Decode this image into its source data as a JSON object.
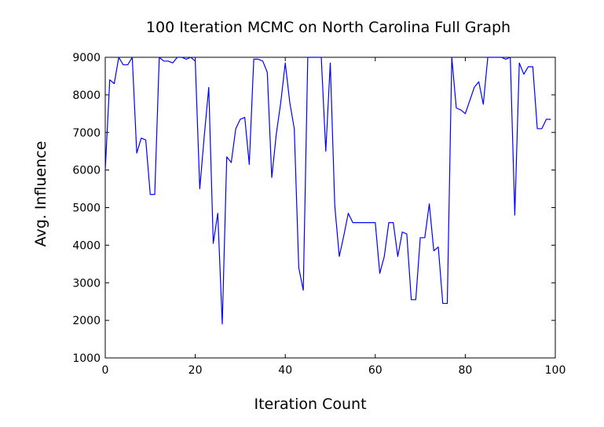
{
  "chart_data": {
    "type": "line",
    "title": "100 Iteration MCMC on North Carolina Full Graph",
    "xlabel": "Iteration Count",
    "ylabel": "Avg. Influence",
    "xlim": [
      0,
      100
    ],
    "ylim": [
      1000,
      9000
    ],
    "x_ticks": [
      0,
      20,
      40,
      60,
      80,
      100
    ],
    "y_ticks": [
      1000,
      2000,
      3000,
      4000,
      5000,
      6000,
      7000,
      8000,
      9000
    ],
    "grid": false,
    "legend": "none",
    "line_color": "#0000ff",
    "x": [
      0,
      1,
      2,
      3,
      4,
      5,
      6,
      7,
      8,
      9,
      10,
      11,
      12,
      13,
      14,
      15,
      16,
      17,
      18,
      19,
      20,
      21,
      22,
      23,
      24,
      25,
      26,
      27,
      28,
      29,
      30,
      31,
      32,
      33,
      34,
      35,
      36,
      37,
      38,
      39,
      40,
      41,
      42,
      43,
      44,
      45,
      46,
      47,
      48,
      49,
      50,
      51,
      52,
      53,
      54,
      55,
      56,
      57,
      58,
      59,
      60,
      61,
      62,
      63,
      64,
      65,
      66,
      67,
      68,
      69,
      70,
      71,
      72,
      73,
      74,
      75,
      76,
      77,
      78,
      79,
      80,
      81,
      82,
      83,
      84,
      85,
      86,
      87,
      88,
      89,
      90,
      91,
      92,
      93,
      94,
      95,
      96,
      97,
      98,
      99
    ],
    "y": [
      6000,
      8400,
      8300,
      9000,
      8800,
      8800,
      9000,
      6450,
      6850,
      6800,
      5350,
      5350,
      9000,
      8900,
      8900,
      8850,
      9000,
      9000,
      8950,
      9000,
      8900,
      5500,
      6900,
      8200,
      4050,
      4850,
      1900,
      6350,
      6200,
      7100,
      7350,
      7400,
      6150,
      8950,
      8950,
      8900,
      8600,
      5800,
      6950,
      7800,
      8850,
      7800,
      7100,
      3400,
      2800,
      9000,
      9000,
      9000,
      9000,
      6500,
      8850,
      5050,
      3700,
      4250,
      4850,
      4600,
      4600,
      4600,
      4600,
      4600,
      4600,
      3250,
      3700,
      4600,
      4600,
      3700,
      4350,
      4300,
      2550,
      2550,
      4200,
      4200,
      5100,
      3850,
      3950,
      2450,
      2450,
      9000,
      7650,
      7600,
      7500,
      7850,
      8200,
      8350,
      7750,
      9000,
      9000,
      9000,
      9000,
      8950,
      9000,
      4800,
      8850,
      8550,
      8750,
      8750,
      7100,
      7100,
      7350,
      7350
    ]
  }
}
